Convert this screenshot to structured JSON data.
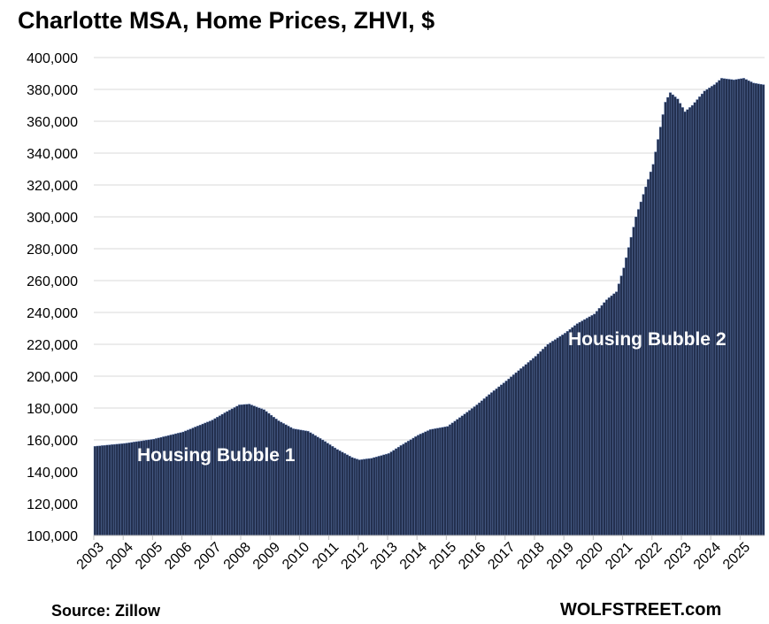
{
  "title": "Charlotte MSA, Home Prices, ZHVI, $",
  "source": "Source: Zillow",
  "brand": "WOLFSTREET.com",
  "colors": {
    "bar": "#23304f",
    "bar_edge": "#6a86bd",
    "grid": "#d9d9d9"
  },
  "chart_data": {
    "type": "bar",
    "title": "Charlotte MSA, Home Prices, ZHVI, $",
    "xlabel": "",
    "ylabel": "",
    "ylim": [
      100000,
      400000
    ],
    "yticks": [
      "100,000",
      "120,000",
      "140,000",
      "160,000",
      "180,000",
      "200,000",
      "220,000",
      "240,000",
      "260,000",
      "280,000",
      "300,000",
      "320,000",
      "340,000",
      "360,000",
      "380,000",
      "400,000"
    ],
    "grid": true,
    "frequency": "monthly",
    "xtick_labels": [
      "2003",
      "2004",
      "2005",
      "2006",
      "2007",
      "2008",
      "2009",
      "2010",
      "2011",
      "2012",
      "2013",
      "2014",
      "2015",
      "2016",
      "2017",
      "2018",
      "2019",
      "2020",
      "2021",
      "2022",
      "2023",
      "2024",
      "2025"
    ],
    "anchors": [
      [
        "2003-01",
        156000
      ],
      [
        "2004-01",
        157800
      ],
      [
        "2005-01",
        160500
      ],
      [
        "2006-01",
        165000
      ],
      [
        "2007-01",
        172500
      ],
      [
        "2007-06",
        177000
      ],
      [
        "2007-12",
        182000
      ],
      [
        "2008-04",
        182500
      ],
      [
        "2008-10",
        179000
      ],
      [
        "2009-04",
        172000
      ],
      [
        "2009-10",
        167000
      ],
      [
        "2010-04",
        165500
      ],
      [
        "2010-10",
        160000
      ],
      [
        "2011-04",
        154000
      ],
      [
        "2011-10",
        149000
      ],
      [
        "2012-01",
        147500
      ],
      [
        "2012-06",
        148500
      ],
      [
        "2013-01",
        151500
      ],
      [
        "2013-06",
        156500
      ],
      [
        "2014-01",
        163000
      ],
      [
        "2014-06",
        166500
      ],
      [
        "2015-01",
        168500
      ],
      [
        "2015-06",
        174000
      ],
      [
        "2016-01",
        182000
      ],
      [
        "2016-06",
        188500
      ],
      [
        "2017-01",
        197000
      ],
      [
        "2017-06",
        203500
      ],
      [
        "2018-01",
        212500
      ],
      [
        "2018-06",
        220000
      ],
      [
        "2019-01",
        227000
      ],
      [
        "2019-06",
        233000
      ],
      [
        "2020-01",
        239000
      ],
      [
        "2020-06",
        248000
      ],
      [
        "2020-10",
        253000
      ],
      [
        "2021-01",
        268000
      ],
      [
        "2021-06",
        300000
      ],
      [
        "2022-01",
        333000
      ],
      [
        "2022-06",
        372000
      ],
      [
        "2022-08",
        378000
      ],
      [
        "2022-11",
        374000
      ],
      [
        "2023-02",
        366000
      ],
      [
        "2023-05",
        370000
      ],
      [
        "2023-10",
        379000
      ],
      [
        "2024-02",
        383000
      ],
      [
        "2024-05",
        387000
      ],
      [
        "2024-10",
        386000
      ],
      [
        "2025-02",
        387000
      ],
      [
        "2025-06",
        384000
      ],
      [
        "2025-10",
        383000
      ]
    ],
    "annotations": [
      "Housing Bubble 1",
      "Housing Bubble 2"
    ]
  }
}
